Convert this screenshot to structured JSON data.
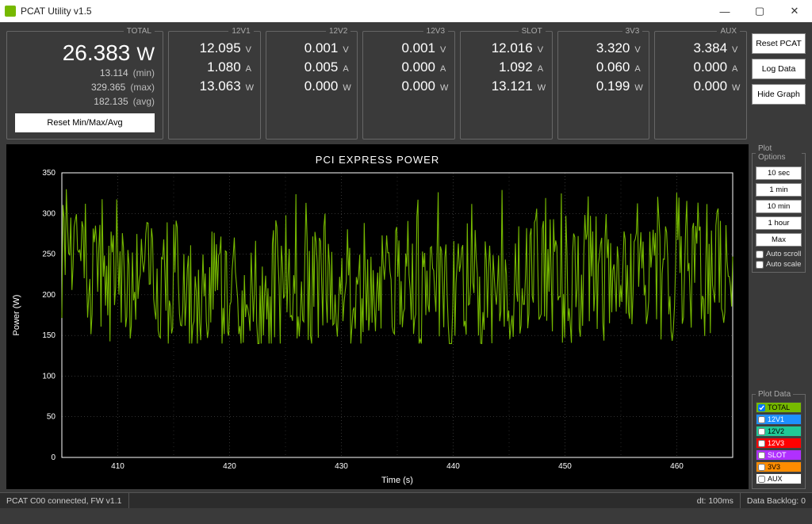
{
  "window": {
    "title": "PCAT Utility v1.5"
  },
  "total": {
    "legend": "TOTAL",
    "value": "26.383",
    "unit": "W",
    "min": "13.114",
    "min_lbl": "(min)",
    "max": "329.365",
    "max_lbl": "(max)",
    "avg": "182.135",
    "avg_lbl": "(avg)",
    "reset_btn": "Reset Min/Max/Avg"
  },
  "rails": [
    {
      "name": "12V1",
      "v": "12.095",
      "a": "1.080",
      "w": "13.063"
    },
    {
      "name": "12V2",
      "v": "0.001",
      "a": "0.005",
      "w": "0.000"
    },
    {
      "name": "12V3",
      "v": "0.001",
      "a": "0.000",
      "w": "0.000"
    },
    {
      "name": "SLOT",
      "v": "12.016",
      "a": "1.092",
      "w": "13.121"
    },
    {
      "name": "3V3",
      "v": "3.320",
      "a": "0.060",
      "w": "0.199"
    },
    {
      "name": "AUX",
      "v": "3.384",
      "a": "0.000",
      "w": "0.000"
    }
  ],
  "rail_units": {
    "v": "V",
    "a": "A",
    "w": "W"
  },
  "actions": {
    "reset": "Reset PCAT",
    "log": "Log Data",
    "hide": "Hide Graph"
  },
  "plot": {
    "title": "PCI EXPRESS POWER",
    "x_label": "Time (s)",
    "y_label": "Power (W)",
    "x_ticks": [
      410,
      420,
      430,
      440,
      450,
      460
    ],
    "x_lim": [
      405,
      465
    ],
    "y_ticks": [
      0,
      50,
      100,
      150,
      200,
      250,
      300,
      350
    ],
    "y_lim": [
      0,
      350
    ],
    "series_color": "#76b900",
    "bg_color": "#000000",
    "axis_color": "#ffffff",
    "grid_color": "#666666",
    "tick_font_size": 10
  },
  "plot_options": {
    "legend": "Plot Options",
    "buttons": [
      "10 sec",
      "1 min",
      "10 min",
      "1 hour",
      "Max"
    ],
    "auto_scroll": {
      "label": "Auto scroll",
      "checked": false
    },
    "auto_scale": {
      "label": "Auto scale",
      "checked": false
    }
  },
  "plot_data": {
    "legend": "Plot Data",
    "items": [
      {
        "label": "TOTAL",
        "color": "#76b900",
        "checked": true
      },
      {
        "label": "12V1",
        "color": "#1e90ff",
        "checked": false
      },
      {
        "label": "12V2",
        "color": "#20c997",
        "checked": false
      },
      {
        "label": "12V3",
        "color": "#ff0000",
        "checked": false
      },
      {
        "label": "SLOT",
        "color": "#b030ff",
        "checked": false
      },
      {
        "label": "3V3",
        "color": "#ff8c00",
        "checked": false
      },
      {
        "label": "AUX",
        "color": "#ffffff",
        "checked": false
      }
    ]
  },
  "status": {
    "conn": "PCAT C00 connected, FW v1.1",
    "dt": "dt: 100ms",
    "backlog": "Data Backlog: 0"
  }
}
